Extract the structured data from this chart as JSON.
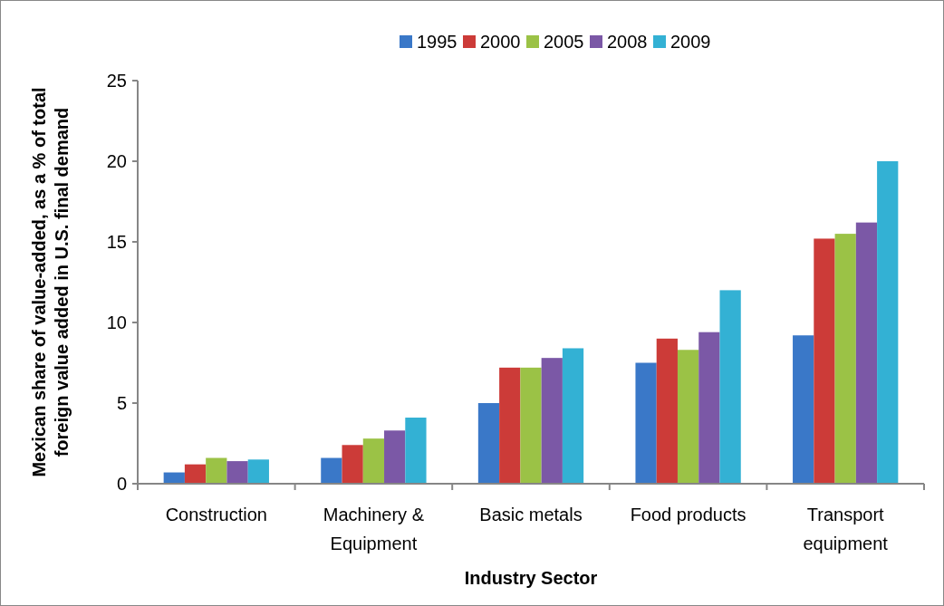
{
  "chart_data": {
    "type": "bar",
    "xlabel": "Industry Sector",
    "ylabel": "Mexican share of value-added, as a % of total foreign value added in U.S. final demand",
    "categories": [
      "Construction",
      "Machinery & Equipment",
      "Basic metals",
      "Food products",
      "Transport equipment"
    ],
    "series": [
      {
        "name": "1995",
        "color": "#3a78c8",
        "values": [
          0.7,
          1.6,
          5.0,
          7.5,
          9.2
        ]
      },
      {
        "name": "2000",
        "color": "#cc3b38",
        "values": [
          1.2,
          2.4,
          7.2,
          9.0,
          15.2
        ]
      },
      {
        "name": "2005",
        "color": "#9bc246",
        "values": [
          1.6,
          2.8,
          7.2,
          8.3,
          15.5
        ]
      },
      {
        "name": "2008",
        "color": "#7b58a6",
        "values": [
          1.4,
          3.3,
          7.8,
          9.4,
          16.2
        ]
      },
      {
        "name": "2009",
        "color": "#33b1d4",
        "values": [
          1.5,
          4.1,
          8.4,
          12.0,
          20.0
        ]
      }
    ],
    "ylim": [
      0,
      25
    ],
    "yticks": [
      0,
      5,
      10,
      15,
      20,
      25
    ],
    "legend": "top",
    "grid": false
  }
}
